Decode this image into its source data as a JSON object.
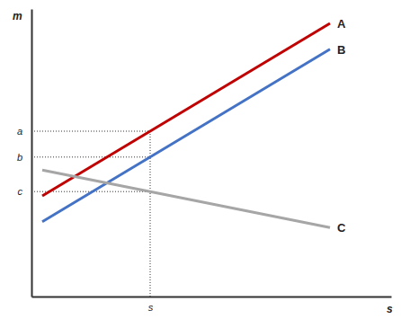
{
  "chart_data": {
    "type": "line",
    "x_label": "s",
    "y_label": "m",
    "x": [
      0.3,
      8.3
    ],
    "series": [
      {
        "name": "A",
        "color": "#c00000",
        "values": [
          3.5,
          9.5
        ]
      },
      {
        "name": "B",
        "color": "#4472c4",
        "values": [
          2.6,
          8.6
        ]
      },
      {
        "name": "C",
        "color": "#a6a6a6",
        "values": [
          4.4,
          2.4
        ]
      }
    ],
    "xlim": [
      0,
      10
    ],
    "ylim": [
      0,
      10
    ],
    "xticks": [
      {
        "value": 3.3,
        "label": "s"
      }
    ],
    "yticks": [
      {
        "value": 5.75,
        "label": "a"
      },
      {
        "value": 4.85,
        "label": "b"
      },
      {
        "value": 3.65,
        "label": "c"
      }
    ]
  }
}
